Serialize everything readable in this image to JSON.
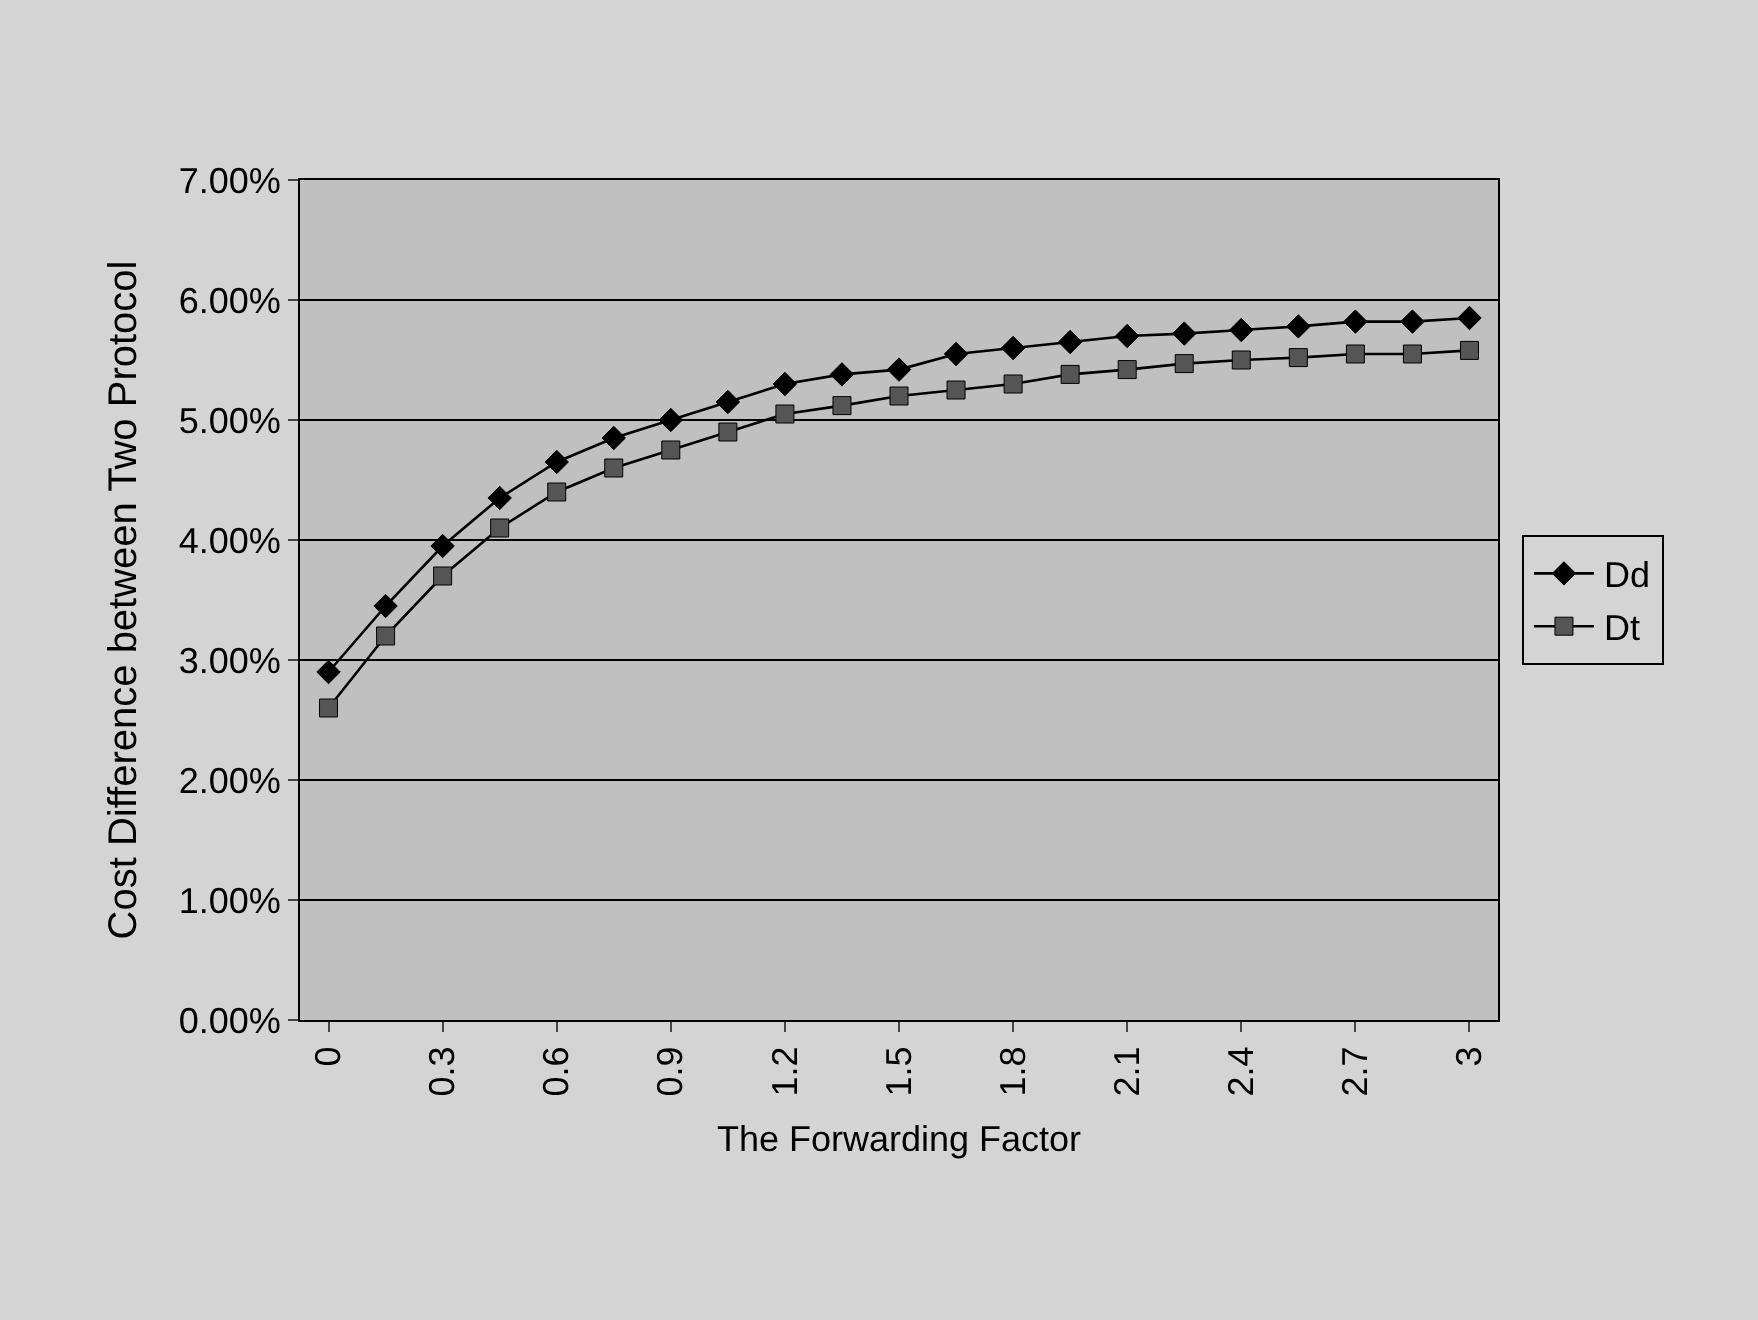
{
  "chart_data": {
    "type": "line",
    "xlabel": "The Forwarding Factor",
    "ylabel": "Cost Difference between Two Protocol",
    "categories": [
      "0",
      null,
      "0.3",
      null,
      "0.6",
      null,
      "0.9",
      null,
      "1.2",
      null,
      "1.5",
      null,
      "1.8",
      null,
      "2.1",
      null,
      "2.4",
      null,
      "2.7",
      null,
      "3"
    ],
    "series": [
      {
        "name": "Dd",
        "color": "#000000",
        "marker": "diamond",
        "values": [
          2.9,
          3.45,
          3.95,
          4.35,
          4.65,
          4.85,
          5.0,
          5.15,
          5.3,
          5.38,
          5.42,
          5.55,
          5.6,
          5.65,
          5.7,
          5.72,
          5.75,
          5.78,
          5.82,
          5.82,
          5.85
        ]
      },
      {
        "name": "Dt",
        "color": "#555555",
        "marker": "square",
        "values": [
          2.6,
          3.2,
          3.7,
          4.1,
          4.4,
          4.6,
          4.75,
          4.9,
          5.05,
          5.12,
          5.2,
          5.25,
          5.3,
          5.38,
          5.42,
          5.47,
          5.5,
          5.52,
          5.55,
          5.55,
          5.58
        ]
      }
    ],
    "ylim": [
      0,
      7
    ],
    "yticks": [
      {
        "value": 0,
        "label": "0.00%"
      },
      {
        "value": 1,
        "label": "1.00%"
      },
      {
        "value": 2,
        "label": "2.00%"
      },
      {
        "value": 3,
        "label": "3.00%"
      },
      {
        "value": 4,
        "label": "4.00%"
      },
      {
        "value": 5,
        "label": "5.00%"
      },
      {
        "value": 6,
        "label": "6.00%"
      },
      {
        "value": 7,
        "label": "7.00%"
      }
    ],
    "grid": "y",
    "legend": "right",
    "line_style": "solid"
  }
}
